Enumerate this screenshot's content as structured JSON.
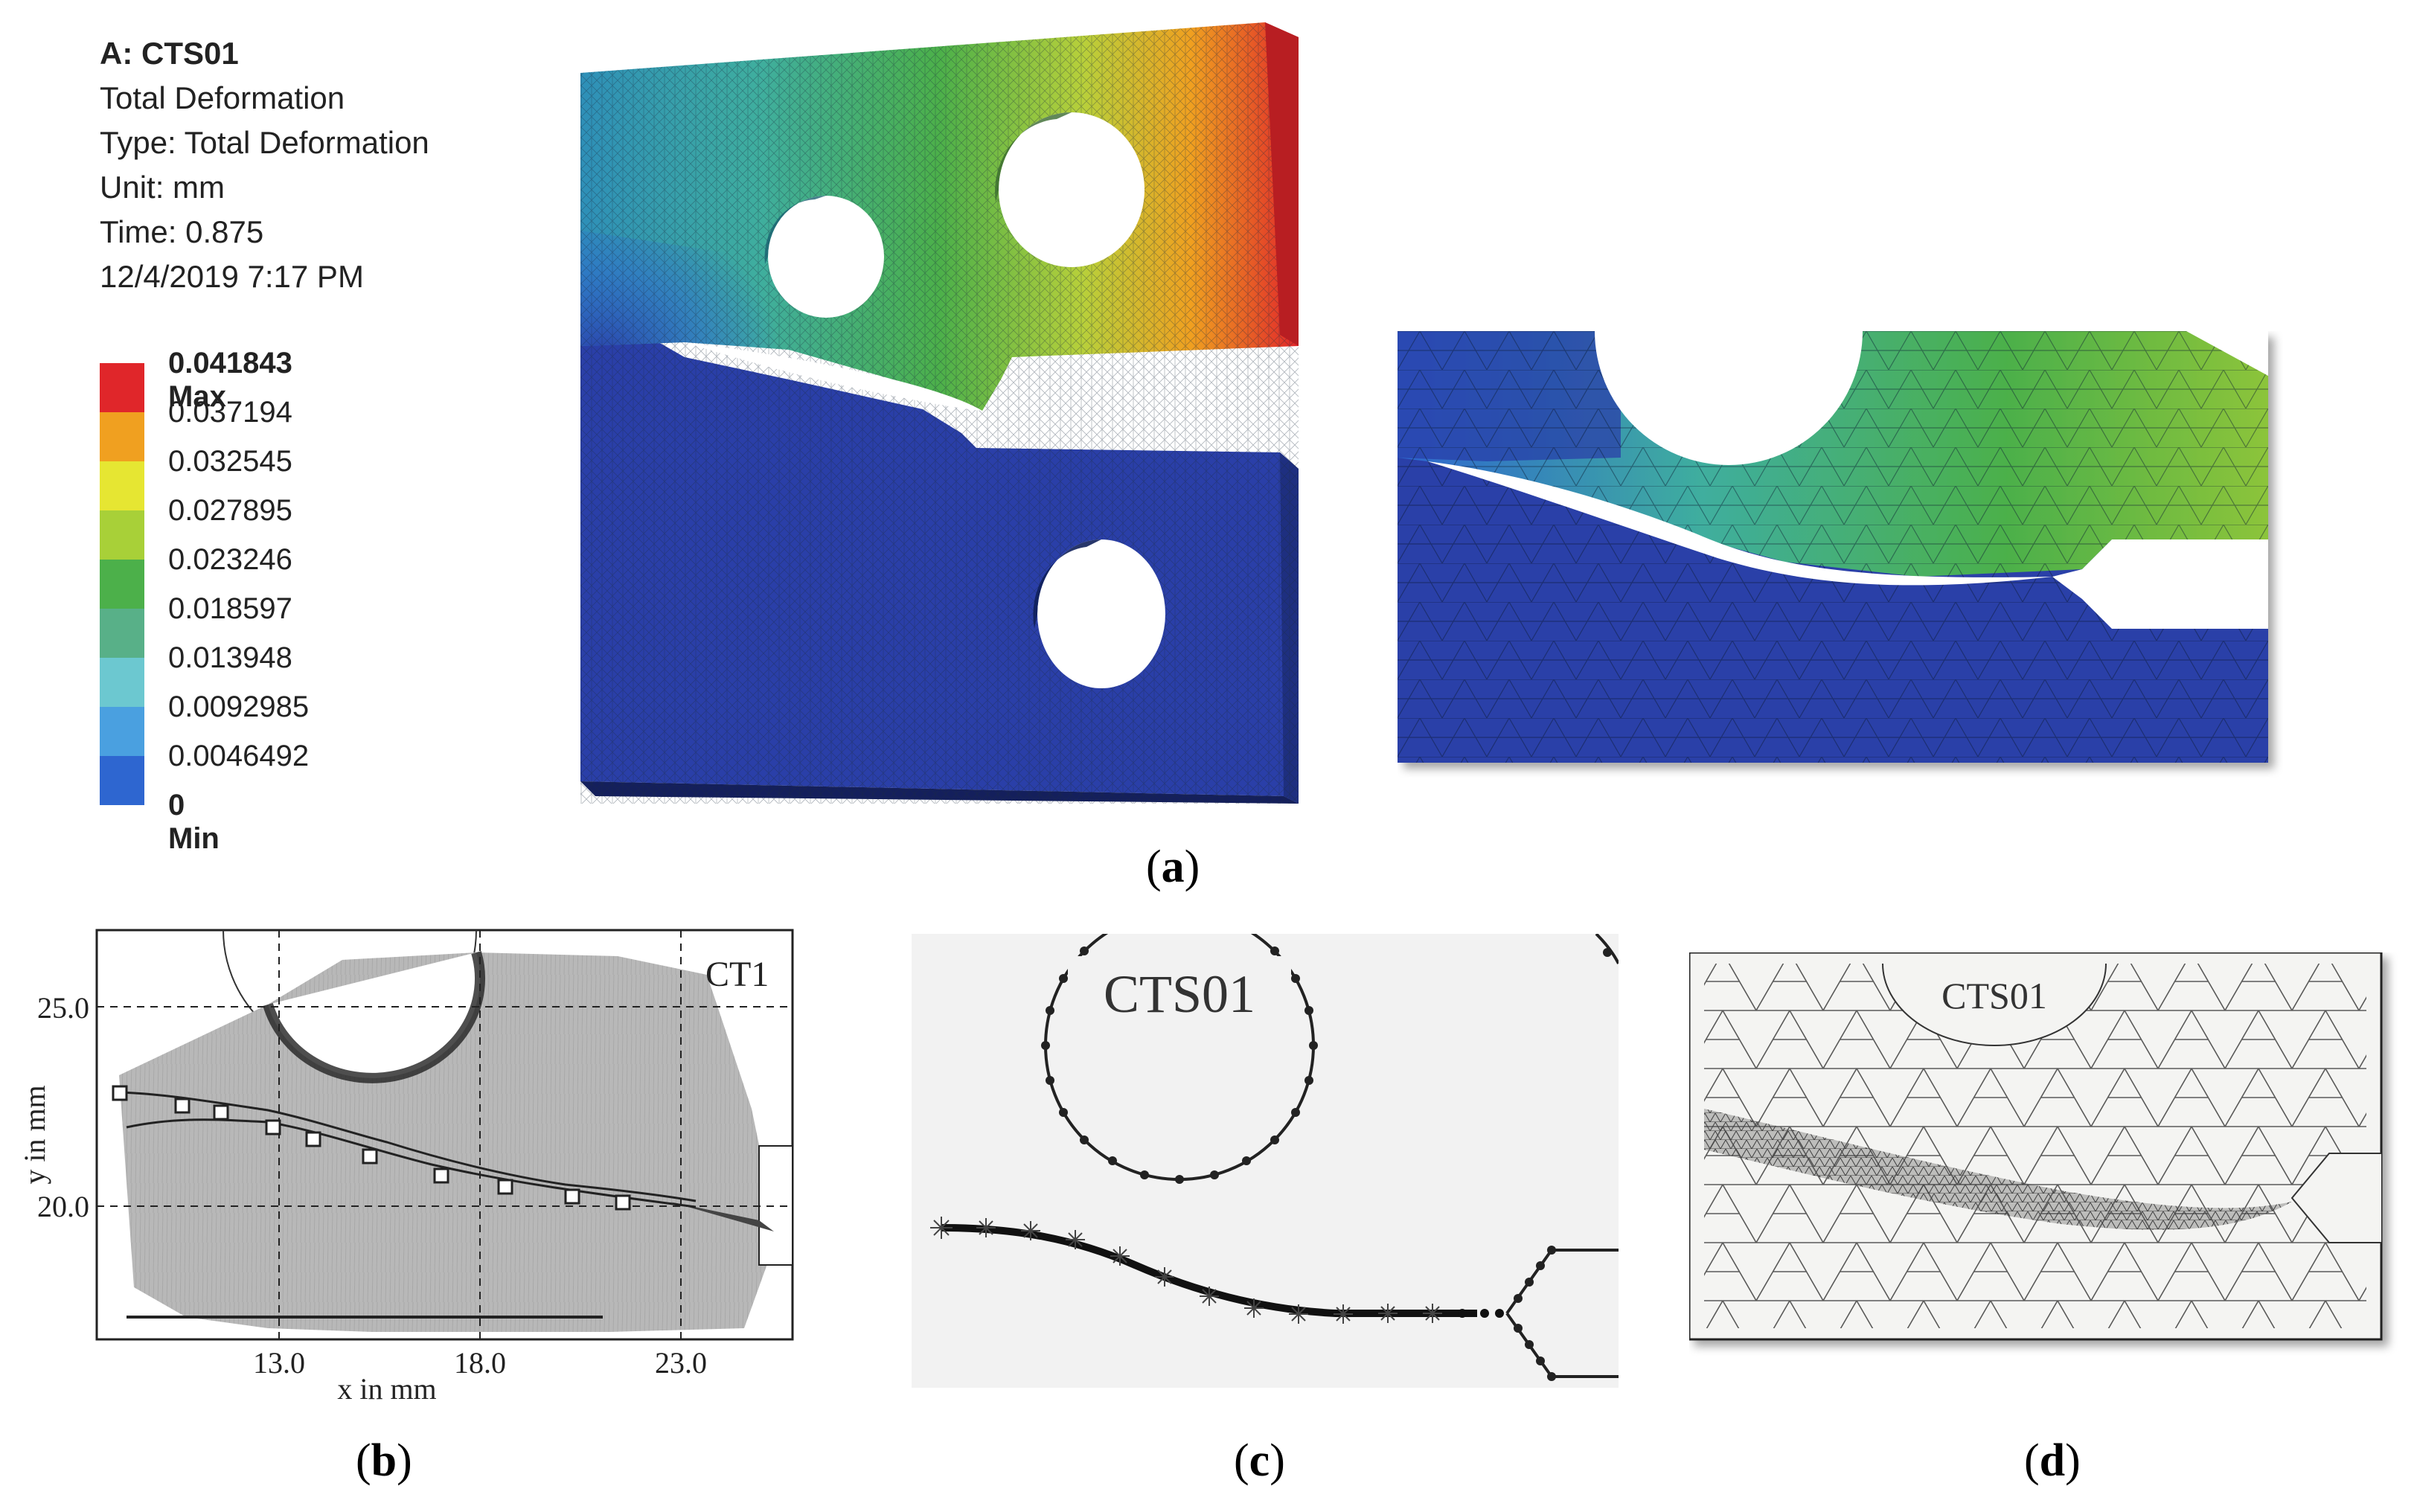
{
  "panel_a": {
    "header": {
      "system": "A: CTS01",
      "result": "Total Deformation",
      "type": "Type: Total Deformation",
      "unit": "Unit: mm",
      "time": "Time: 0.875",
      "date": "12/4/2019 7:17 PM"
    },
    "legend": [
      {
        "label": "0.041843 Max",
        "color": "#e0262a"
      },
      {
        "label": "0.037194",
        "color": "#f0a020"
      },
      {
        "label": "0.032545",
        "color": "#e6e632"
      },
      {
        "label": "0.027895",
        "color": "#a8d038"
      },
      {
        "label": "0.023246",
        "color": "#4cb04a"
      },
      {
        "label": "0.018597",
        "color": "#58b088"
      },
      {
        "label": "0.013948",
        "color": "#6cc8d0"
      },
      {
        "label": "0.0092985",
        "color": "#4aa0e0"
      },
      {
        "label": "0.0046492",
        "color": "#2e66d0"
      },
      {
        "label": "0 Min",
        "color": "#2a3fa8"
      }
    ],
    "caption": "a"
  },
  "panel_b": {
    "label": "CT1",
    "ylabel": "y in mm",
    "xlabel": "x in mm",
    "yticks": [
      "25.0",
      "20.0"
    ],
    "xticks": [
      "13.0",
      "18.0",
      "23.0"
    ],
    "caption": "b"
  },
  "panel_c": {
    "label": "CTS01",
    "caption": "c"
  },
  "panel_d": {
    "label": "CTS01",
    "caption": "d"
  },
  "colors": {
    "deform_low": "#2a3fa8",
    "deform_mid": "#4cb04a",
    "deform_high": "#e0262a"
  }
}
